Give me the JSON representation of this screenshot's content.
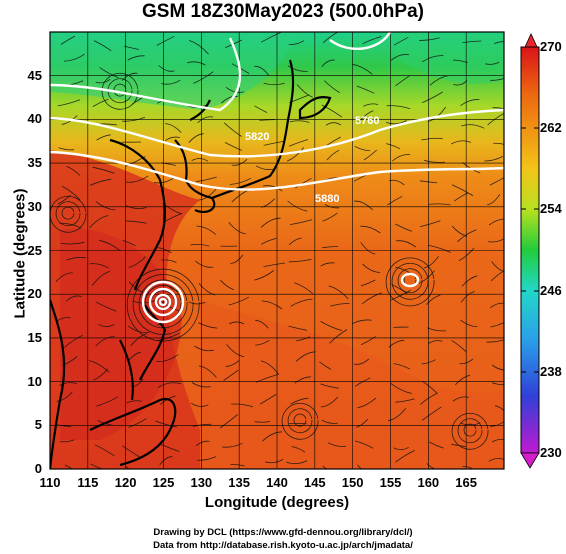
{
  "title": "GSM 18Z30May2023 (500.0hPa)",
  "x_axis": {
    "label": "Longitude (degrees)",
    "ticks": [
      "110",
      "115",
      "120",
      "125",
      "130",
      "135",
      "140",
      "145",
      "150",
      "155",
      "160",
      "165"
    ]
  },
  "y_axis": {
    "label": "Latitude  (degrees)",
    "ticks": [
      "0",
      "5",
      "10",
      "15",
      "20",
      "25",
      "30",
      "35",
      "40",
      "45"
    ]
  },
  "colorbar": {
    "ticks": [
      "270",
      "262",
      "254",
      "246",
      "238",
      "230"
    ],
    "min": 230,
    "max": 270
  },
  "contour_labels": [
    "5760",
    "5820",
    "5880"
  ],
  "credits": {
    "line1": "Drawing by DCL (https://www.gfd-dennou.org/library/dcl/)",
    "line2": "Data from http://database.rish.kyoto-u.ac.jp/arch/jmadata/"
  },
  "map": {
    "lon_range": [
      110,
      170
    ],
    "lat_range": [
      0,
      50
    ],
    "field": "temperature (K) at 500 hPa with streamlines and height contours",
    "colors": {
      "warm": "#e8501c",
      "hot": "#d42a1a",
      "mid": "#ee7a18",
      "yellow": "#e6d020",
      "green": "#38c040",
      "teal": "#30d08a"
    }
  }
}
